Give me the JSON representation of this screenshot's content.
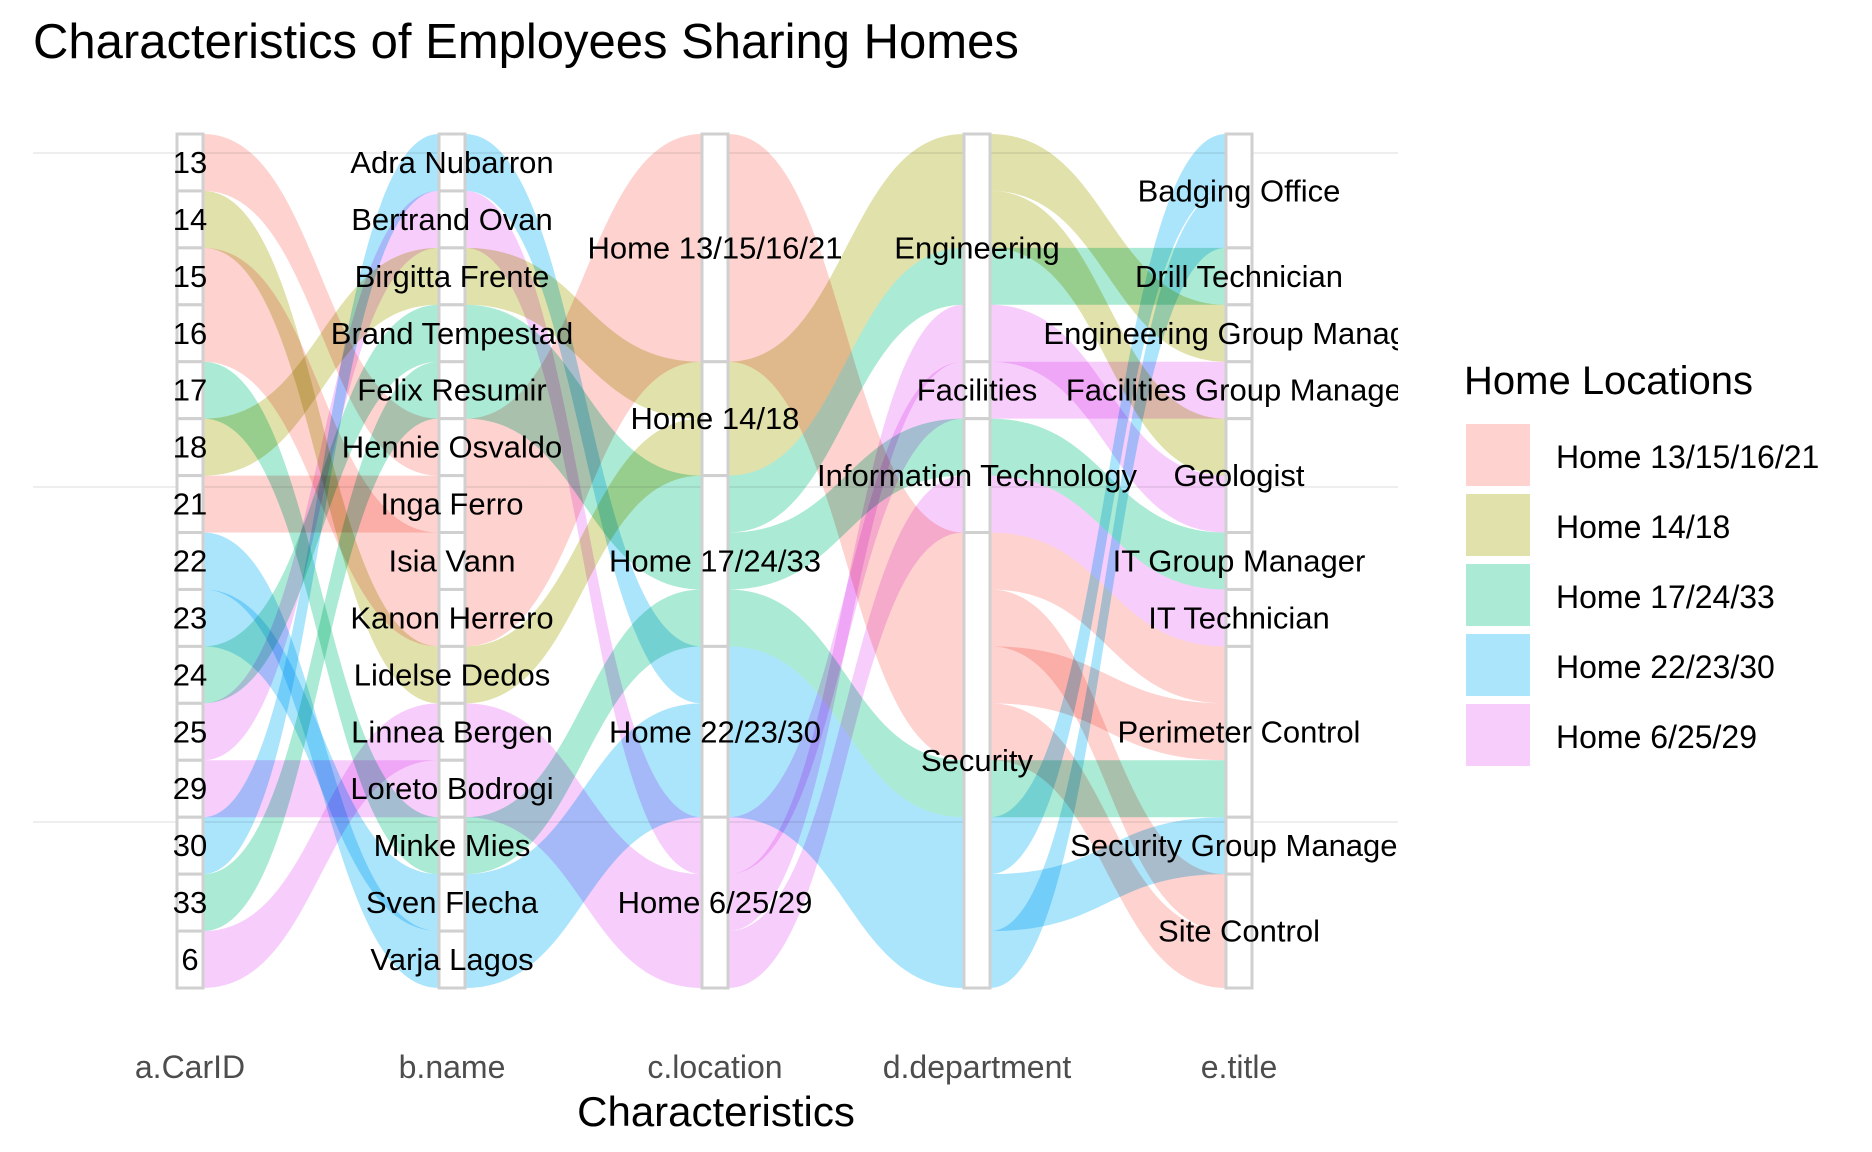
{
  "chart_data": {
    "type": "alluvial",
    "title": "Characteristics of Employees Sharing Homes",
    "xlabel": "Characteristics",
    "axes": [
      "a.CarID",
      "b.name",
      "c.location",
      "d.department",
      "e.title"
    ],
    "legend": {
      "title": "Home Locations",
      "placement": "right",
      "entries": [
        "Home 13/15/16/21",
        "Home 14/18",
        "Home 17/24/33",
        "Home 22/23/30",
        "Home 6/25/29"
      ]
    },
    "colors": {
      "Home 13/15/16/21": "#F8766D",
      "Home 14/18": "#A3A500",
      "Home 17/24/33": "#00BF7D",
      "Home 22/23/30": "#00B0F6",
      "Home 6/25/29": "#E76BF3"
    },
    "strata": {
      "a.CarID": [
        "13",
        "14",
        "15",
        "16",
        "17",
        "18",
        "21",
        "22",
        "23",
        "24",
        "25",
        "29",
        "30",
        "33",
        "6"
      ],
      "b.name": [
        "Adra Nubarron",
        "Bertrand Ovan",
        "Birgitta Frente",
        "Brand Tempestad",
        "Felix Resumir",
        "Hennie Osvaldo",
        "Inga Ferro",
        "Isia Vann",
        "Kanon Herrero",
        "Lidelse Dedos",
        "Linnea Bergen",
        "Loreto Bodrogi",
        "Minke Mies",
        "Sven Flecha",
        "Varja Lagos"
      ],
      "c.location": [
        "Home 13/15/16/21",
        "Home 14/18",
        "Home 17/24/33",
        "Home 22/23/30",
        "Home 6/25/29"
      ],
      "d.department": [
        "Engineering",
        "Facilities",
        "Information Technology",
        "Security"
      ],
      "e.title": [
        "Badging Office",
        "Drill Technician",
        "Engineering Group Manager",
        "Facilities Group Manager",
        "Geologist",
        "IT Group Manager",
        "IT Technician",
        "Perimeter Control",
        "Security Group Manager",
        "Site Control"
      ]
    },
    "employees": [
      {
        "carid": "13",
        "name": "Hennie Osvaldo",
        "location": "Home 13/15/16/21",
        "department": "Security",
        "title": "Perimeter Control"
      },
      {
        "carid": "14",
        "name": "Lidelse Dedos",
        "location": "Home 14/18",
        "department": "Engineering",
        "title": "Geologist"
      },
      {
        "carid": "15",
        "name": "Isia Vann",
        "location": "Home 13/15/16/21",
        "department": "Security",
        "title": "Perimeter Control"
      },
      {
        "carid": "16",
        "name": "Kanon Herrero",
        "location": "Home 13/15/16/21",
        "department": "Security",
        "title": "Site Control"
      },
      {
        "carid": "17",
        "name": "Minke Mies",
        "location": "Home 17/24/33",
        "department": "Security",
        "title": "Perimeter Control"
      },
      {
        "carid": "18",
        "name": "Birgitta Frente",
        "location": "Home 14/18",
        "department": "Engineering",
        "title": "Engineering Group Manager"
      },
      {
        "carid": "21",
        "name": "Inga Ferro",
        "location": "Home 13/15/16/21",
        "department": "Security",
        "title": "Site Control"
      },
      {
        "carid": "22",
        "name": "Varja Lagos",
        "location": "Home 22/23/30",
        "department": "Security",
        "title": "Badging Office"
      },
      {
        "carid": "23",
        "name": "Sven Flecha",
        "location": "Home 22/23/30",
        "department": "Security",
        "title": "Security Group Manager"
      },
      {
        "carid": "24",
        "name": "Brand Tempestad",
        "location": "Home 17/24/33",
        "department": "Engineering",
        "title": "Drill Technician"
      },
      {
        "carid": "25",
        "name": "Bertrand Ovan",
        "location": "Home 6/25/29",
        "department": "Facilities",
        "title": "Facilities Group Manager"
      },
      {
        "carid": "29",
        "name": "Loreto Bodrogi",
        "location": "Home 6/25/29",
        "department": "Information Technology",
        "title": "IT Technician"
      },
      {
        "carid": "30",
        "name": "Adra Nubarron",
        "location": "Home 22/23/30",
        "department": "Security",
        "title": "Badging Office"
      },
      {
        "carid": "33",
        "name": "Felix Resumir",
        "location": "Home 17/24/33",
        "department": "Information Technology",
        "title": "IT Group Manager"
      },
      {
        "carid": "6",
        "name": "Linnea Bergen",
        "location": "Home 6/25/29",
        "department": "Engineering",
        "title": "Geologist"
      }
    ]
  }
}
